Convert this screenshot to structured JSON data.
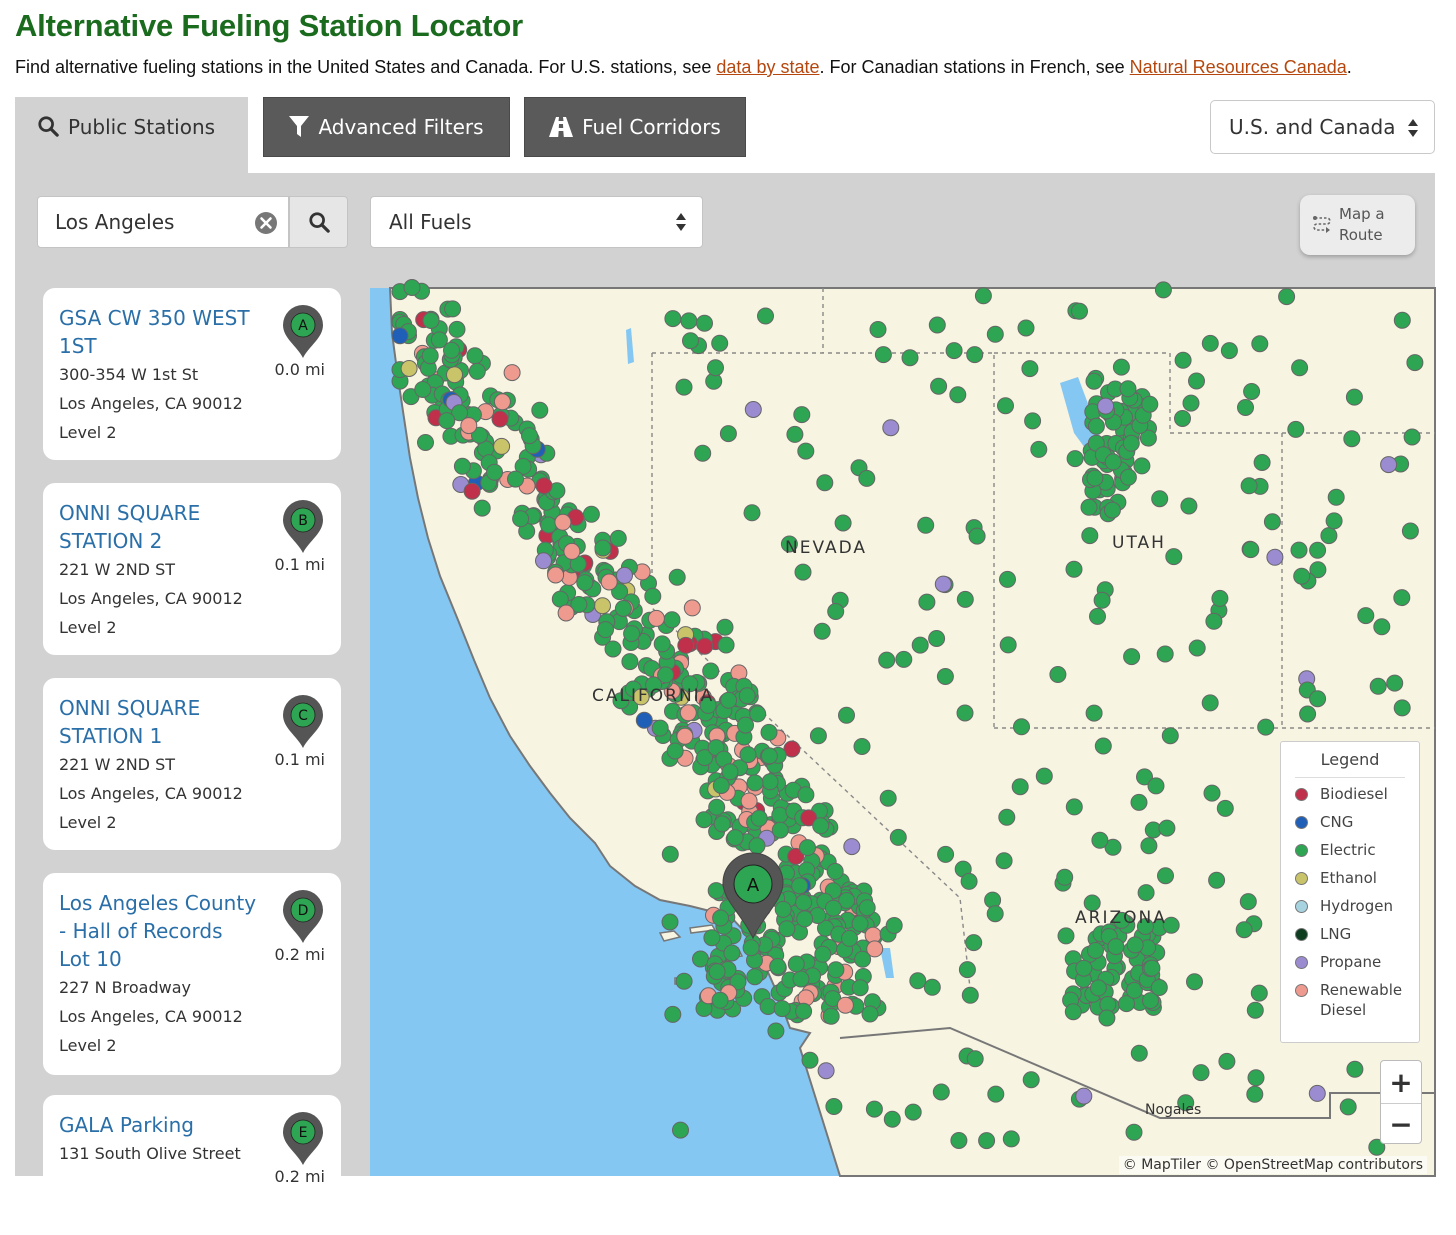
{
  "page": {
    "title": "Alternative Fueling Station Locator",
    "intro_before": "Find alternative fueling stations in the United States and Canada. For U.S. stations, see ",
    "link_state": "data by state",
    "intro_middle": ". For Canadian stations in French, see ",
    "link_canada": "Natural Resources Canada",
    "intro_after": "."
  },
  "tabs": [
    {
      "label": "Public Stations",
      "icon": "search-icon"
    },
    {
      "label": "Advanced Filters",
      "icon": "filter-icon"
    },
    {
      "label": "Fuel Corridors",
      "icon": "road-icon"
    }
  ],
  "region_select": {
    "value": "U.S. and Canada"
  },
  "search": {
    "value": "Los Angeles"
  },
  "fuel_select": {
    "value": "All Fuels"
  },
  "route_button": {
    "line1": "Map a",
    "line2": "Route"
  },
  "stations": [
    {
      "marker": "A",
      "name": "GSA CW 350 WEST 1ST",
      "address": "300-354 W 1st St",
      "city": "Los Angeles, CA 90012",
      "level": "Level 2",
      "distance": "0.0 mi"
    },
    {
      "marker": "B",
      "name": "ONNI SQUARE STATION 2",
      "address": "221 W 2ND ST",
      "city": "Los Angeles, CA 90012",
      "level": "Level 2",
      "distance": "0.1 mi"
    },
    {
      "marker": "C",
      "name": "ONNI SQUARE STATION 1",
      "address": "221 W 2ND ST",
      "city": "Los Angeles, CA 90012",
      "level": "Level 2",
      "distance": "0.1 mi"
    },
    {
      "marker": "D",
      "name": "Los Angeles County - Hall of Records Lot 10",
      "address": "227 N Broadway",
      "city": "Los Angeles, CA 90012",
      "level": "Level 2",
      "distance": "0.2 mi"
    },
    {
      "marker": "E",
      "name": "GALA Parking",
      "address": "131 South Olive Street",
      "city": "",
      "level": "",
      "distance": "0.2 mi"
    }
  ],
  "map": {
    "state_labels": [
      "NEVADA",
      "UTAH",
      "CALIFORNIA",
      "ARIZONA",
      "Nogales"
    ],
    "selected_marker": "A",
    "attribution": "© MapTiler © OpenStreetMap contributors",
    "zoom_in": "+",
    "zoom_out": "−"
  },
  "legend": {
    "title": "Legend",
    "items": [
      {
        "label": "Biodiesel",
        "color": "#c0304a"
      },
      {
        "label": "CNG",
        "color": "#1f5fb8"
      },
      {
        "label": "Electric",
        "color": "#2da552"
      },
      {
        "label": "Ethanol",
        "color": "#c9c46a"
      },
      {
        "label": "Hydrogen",
        "color": "#a7d3e0"
      },
      {
        "label": "LNG",
        "color": "#0f3d1f"
      },
      {
        "label": "Propane",
        "color": "#9b8bd0"
      },
      {
        "label": "Renewable Diesel",
        "color": "#ee9a8e"
      }
    ]
  },
  "colors": {
    "title_green": "#1b6b1f",
    "link_orange": "#b5470e",
    "station_link_blue": "#2a6fa8",
    "marker_gray": "#555555",
    "marker_green": "#2da552",
    "ocean": "#84c7f3",
    "land": "#f7f4e2"
  }
}
